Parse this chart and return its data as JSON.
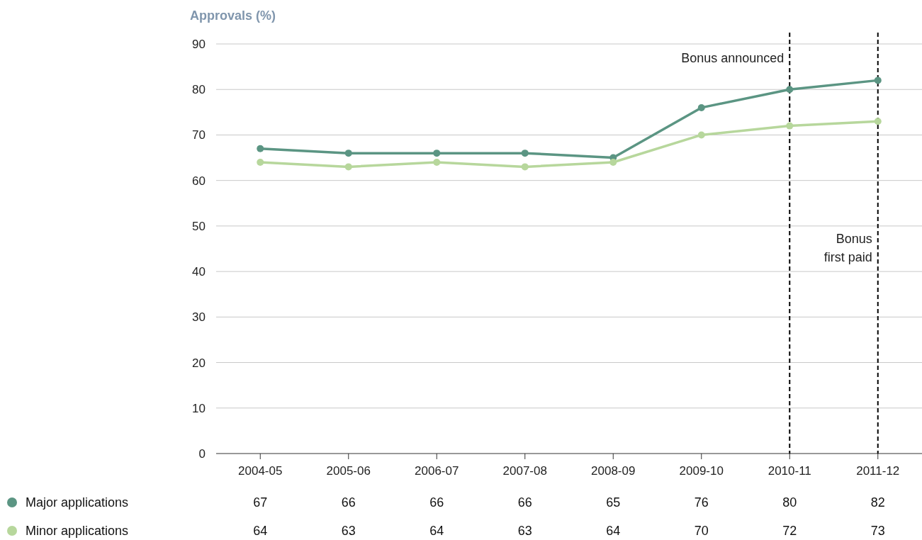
{
  "chart_data": {
    "type": "line",
    "ylabel": "Approvals (%)",
    "categories": [
      "2004-05",
      "2005-06",
      "2006-07",
      "2007-08",
      "2008-09",
      "2009-10",
      "2010-11",
      "2011-12"
    ],
    "series": [
      {
        "name": "Major applications",
        "color": "#5b9583",
        "values": [
          67,
          66,
          66,
          66,
          65,
          76,
          80,
          82
        ]
      },
      {
        "name": "Minor applications",
        "color": "#b7d79c",
        "values": [
          64,
          63,
          64,
          63,
          64,
          70,
          72,
          73
        ]
      }
    ],
    "ylim": [
      0,
      90
    ],
    "yticks": [
      0,
      10,
      20,
      30,
      40,
      50,
      60,
      70,
      80,
      90
    ],
    "grid": "y",
    "legend": "bottom",
    "marker": "circle",
    "line_style": "solid",
    "data_labels": true,
    "ref_lines": [
      {
        "axis": "x",
        "value": "2010-11",
        "label": "Bonus announced",
        "color": "#000000",
        "line_style": "dashed"
      },
      {
        "axis": "x",
        "value": "2011-12",
        "label": "Bonus first paid",
        "color": "#000000",
        "line_style": "dashed"
      }
    ]
  }
}
